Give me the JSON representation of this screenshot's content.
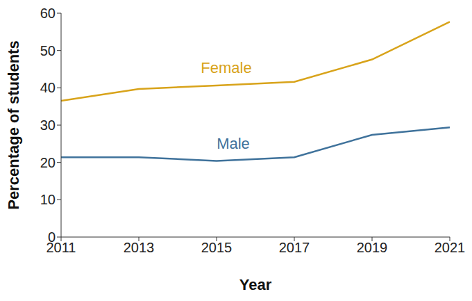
{
  "chart_data": {
    "type": "line",
    "x": [
      2011,
      2013,
      2015,
      2017,
      2019,
      2021
    ],
    "series": [
      {
        "name": "Female",
        "color": "#d8a31a",
        "values": [
          36.5,
          39.7,
          40.6,
          41.6,
          47.6,
          57.7
        ]
      },
      {
        "name": "Male",
        "color": "#3f729b",
        "values": [
          21.4,
          21.4,
          20.4,
          21.4,
          27.4,
          29.4
        ]
      }
    ],
    "xlabel": "Year",
    "ylabel": "Percentage of students",
    "xlim": [
      2011,
      2021
    ],
    "xticks": [
      2011,
      2013,
      2015,
      2017,
      2019,
      2021
    ],
    "ylim": [
      0,
      60
    ],
    "yticks": [
      0,
      10,
      20,
      30,
      40,
      50,
      60
    ],
    "grid": false
  }
}
